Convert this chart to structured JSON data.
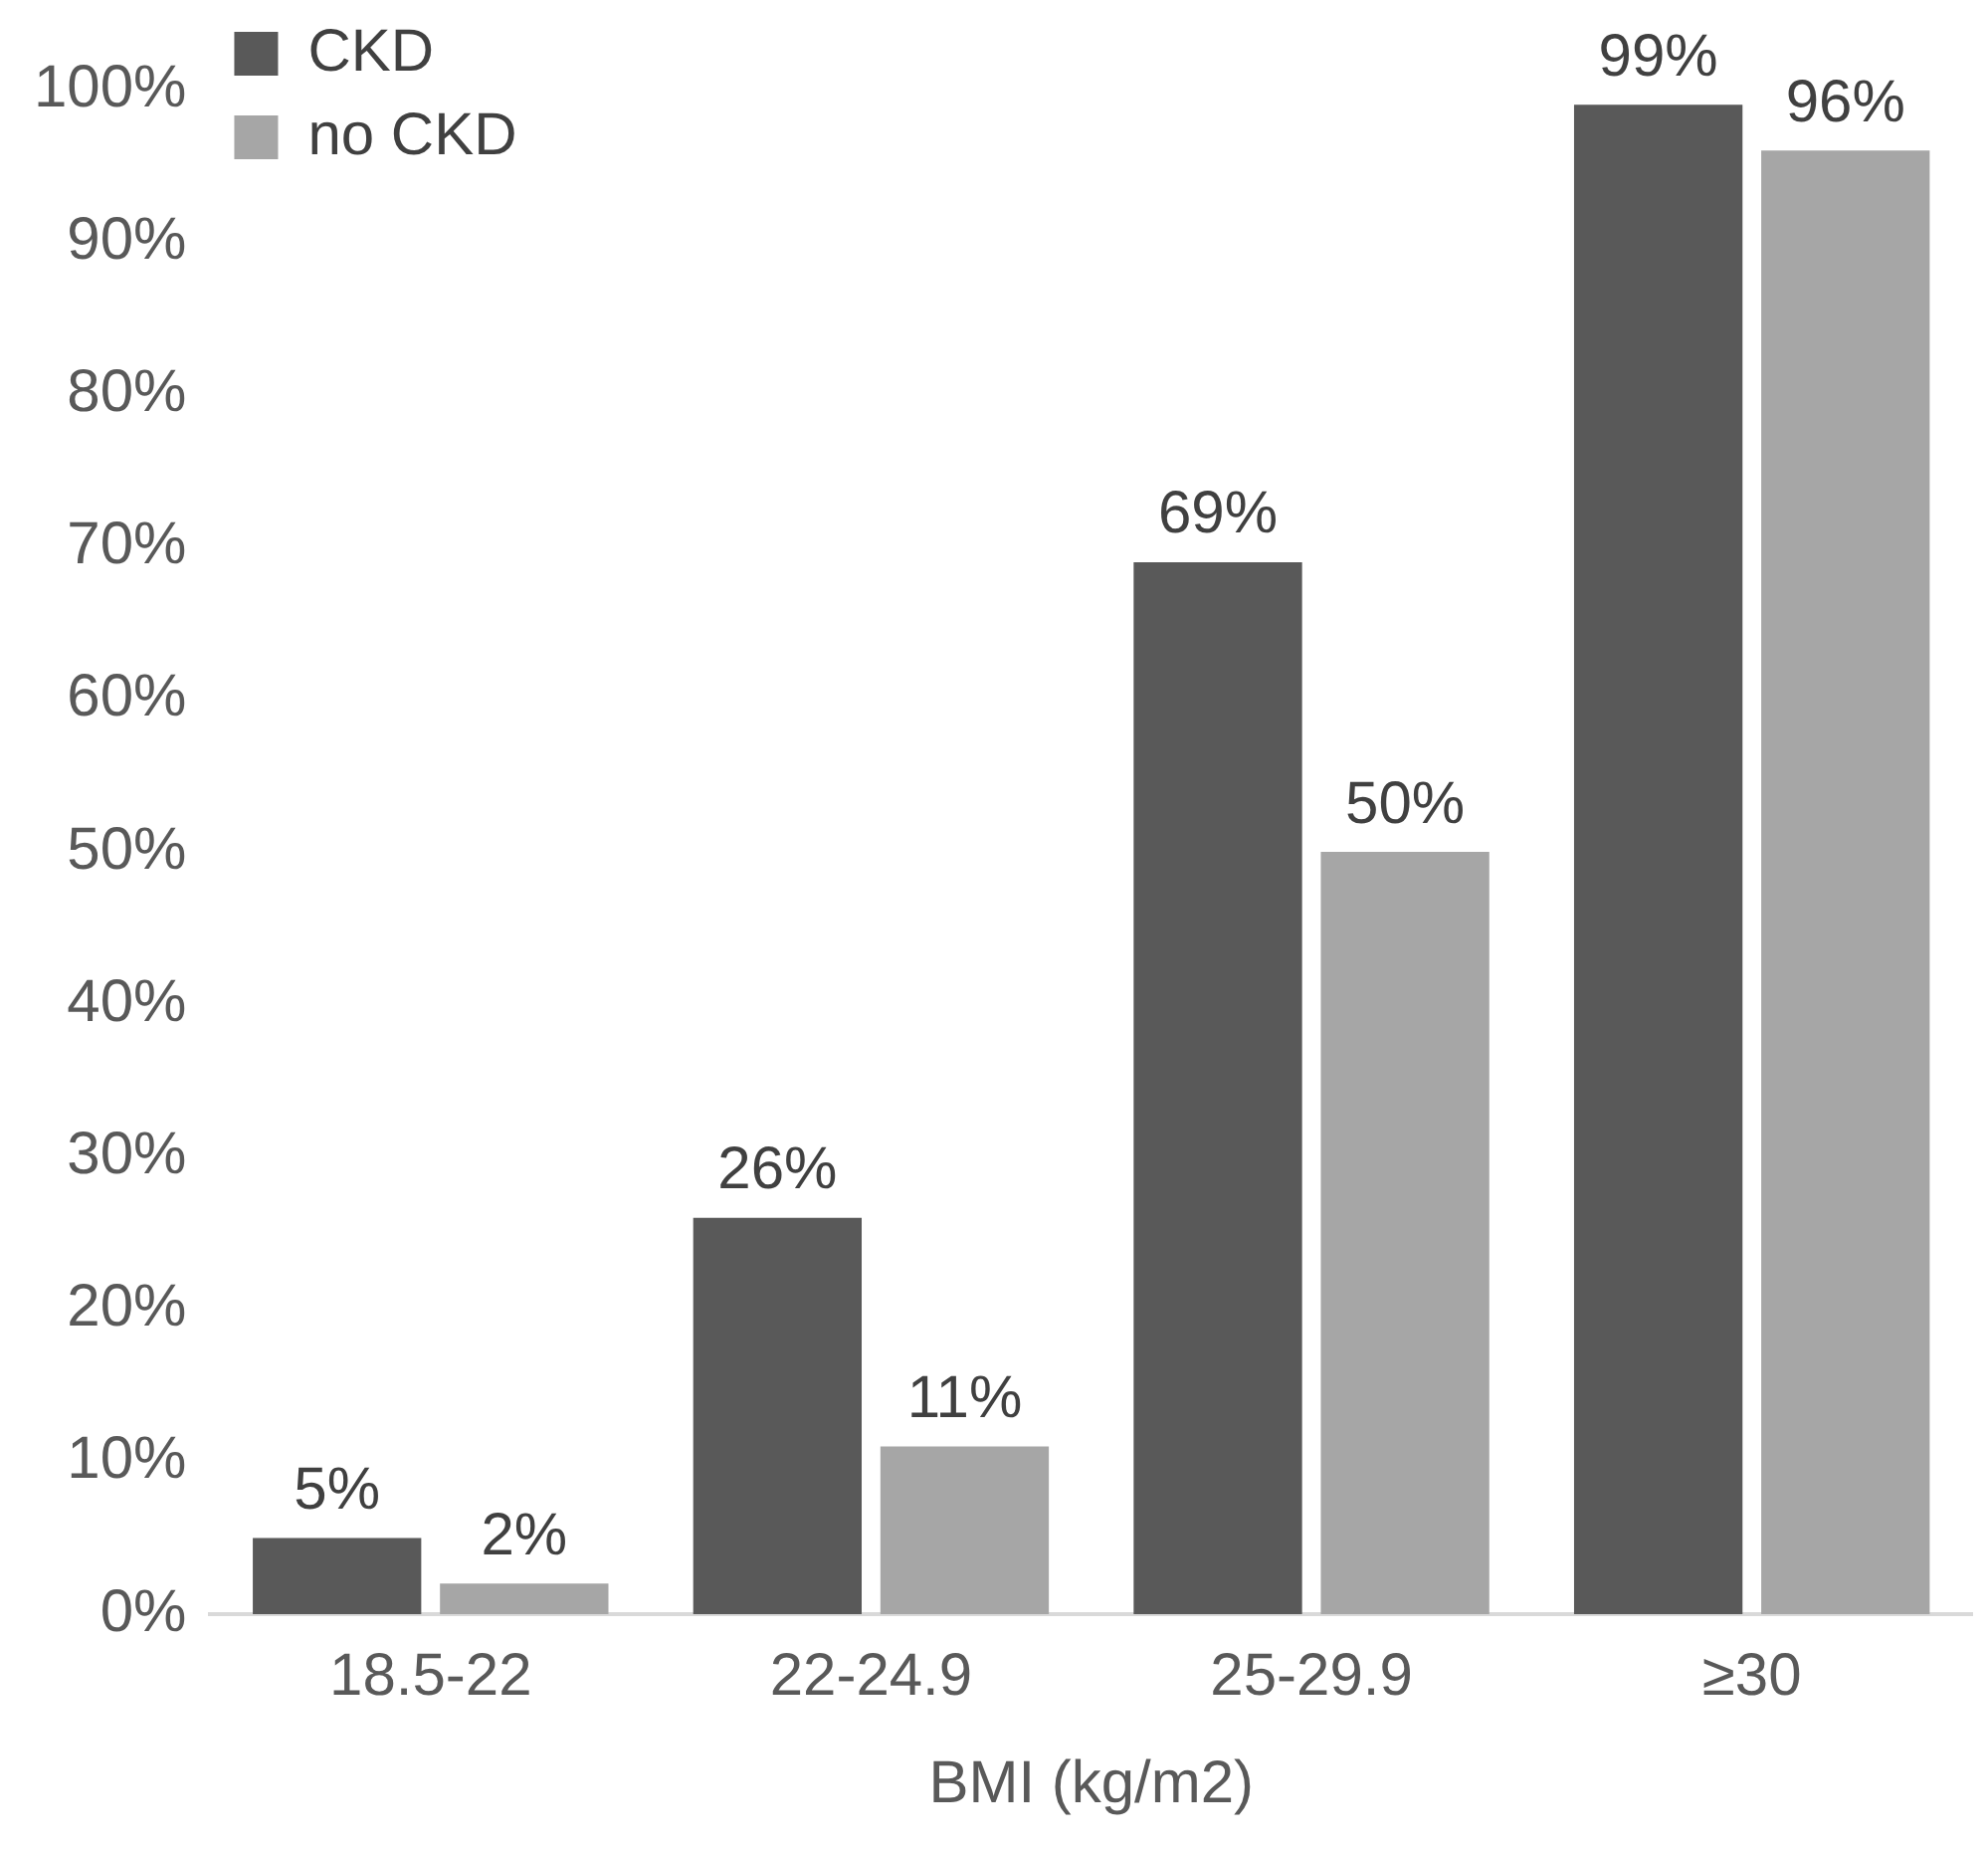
{
  "chart_data": {
    "type": "bar",
    "xlabel": "BMI (kg/m2)",
    "categories": [
      "18.5-22",
      "22-24.9",
      "25-29.9",
      "≥30"
    ],
    "series": [
      {
        "name": "CKD",
        "color": "#595959",
        "values": [
          5,
          26,
          69,
          99
        ],
        "value_labels": [
          "5%",
          "26%",
          "69%",
          "99%"
        ]
      },
      {
        "name": "no CKD",
        "color": "#a6a6a6",
        "values": [
          2,
          11,
          50,
          96
        ],
        "value_labels": [
          "2%",
          "11%",
          "50%",
          "96%"
        ]
      }
    ],
    "ylim": [
      0,
      100
    ],
    "yticks": [
      {
        "value": 0,
        "label": "0%"
      },
      {
        "value": 10,
        "label": "10%"
      },
      {
        "value": 20,
        "label": "20%"
      },
      {
        "value": 30,
        "label": "30%"
      },
      {
        "value": 40,
        "label": "40%"
      },
      {
        "value": 50,
        "label": "50%"
      },
      {
        "value": 60,
        "label": "60%"
      },
      {
        "value": 70,
        "label": "70%"
      },
      {
        "value": 80,
        "label": "80%"
      },
      {
        "value": 90,
        "label": "90%"
      },
      {
        "value": 100,
        "label": "100%"
      }
    ],
    "grid": false,
    "legend": "top left"
  }
}
